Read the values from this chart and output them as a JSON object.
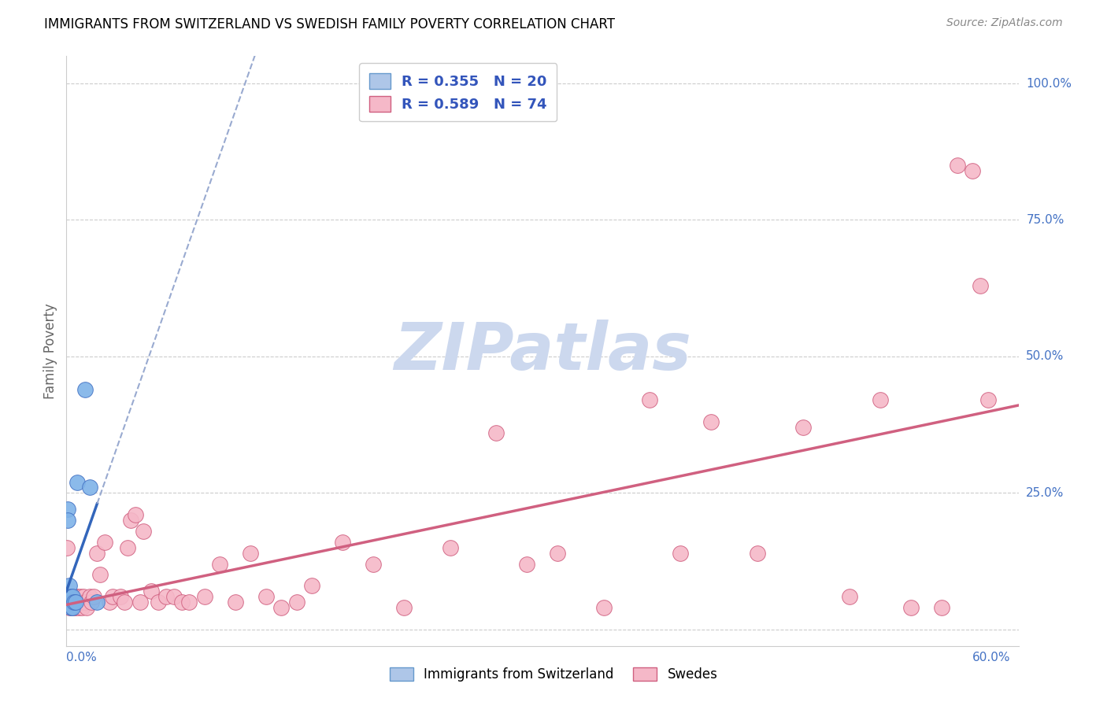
{
  "title": "IMMIGRANTS FROM SWITZERLAND VS SWEDISH FAMILY POVERTY CORRELATION CHART",
  "source": "Source: ZipAtlas.com",
  "ylabel": "Family Poverty",
  "xlim": [
    0.0,
    0.62
  ],
  "ylim": [
    -0.03,
    1.05
  ],
  "watermark": "ZIPatlas",
  "watermark_color": "#ccd8ee",
  "grid_color": "#cccccc",
  "swiss_x": [
    0.0005,
    0.001,
    0.001,
    0.001,
    0.002,
    0.002,
    0.002,
    0.002,
    0.003,
    0.003,
    0.003,
    0.004,
    0.004,
    0.004,
    0.005,
    0.006,
    0.007,
    0.012,
    0.015,
    0.02
  ],
  "swiss_y": [
    0.05,
    0.22,
    0.2,
    0.06,
    0.05,
    0.06,
    0.08,
    0.05,
    0.06,
    0.05,
    0.04,
    0.05,
    0.04,
    0.06,
    0.05,
    0.05,
    0.27,
    0.44,
    0.26,
    0.05
  ],
  "swiss_color": "#7fb3e8",
  "swiss_edge_color": "#4472c4",
  "swiss_trend_color": "#3366bb",
  "swiss_trend_dash_color": "#99aad0",
  "swiss_trend_x_solid_end": 0.02,
  "swede_x": [
    0.0005,
    0.001,
    0.001,
    0.002,
    0.002,
    0.002,
    0.003,
    0.003,
    0.004,
    0.004,
    0.005,
    0.005,
    0.006,
    0.006,
    0.007,
    0.007,
    0.008,
    0.008,
    0.009,
    0.01,
    0.01,
    0.011,
    0.012,
    0.013,
    0.015,
    0.016,
    0.018,
    0.02,
    0.022,
    0.025,
    0.028,
    0.03,
    0.035,
    0.038,
    0.04,
    0.042,
    0.045,
    0.048,
    0.05,
    0.055,
    0.06,
    0.065,
    0.07,
    0.075,
    0.08,
    0.09,
    0.1,
    0.11,
    0.12,
    0.13,
    0.14,
    0.15,
    0.16,
    0.18,
    0.2,
    0.22,
    0.25,
    0.28,
    0.3,
    0.32,
    0.35,
    0.38,
    0.4,
    0.42,
    0.45,
    0.48,
    0.51,
    0.53,
    0.55,
    0.57,
    0.58,
    0.59,
    0.595,
    0.6
  ],
  "swede_y": [
    0.15,
    0.05,
    0.06,
    0.04,
    0.05,
    0.06,
    0.05,
    0.06,
    0.04,
    0.05,
    0.04,
    0.06,
    0.05,
    0.04,
    0.05,
    0.06,
    0.04,
    0.05,
    0.06,
    0.04,
    0.05,
    0.06,
    0.05,
    0.04,
    0.06,
    0.05,
    0.06,
    0.14,
    0.1,
    0.16,
    0.05,
    0.06,
    0.06,
    0.05,
    0.15,
    0.2,
    0.21,
    0.05,
    0.18,
    0.07,
    0.05,
    0.06,
    0.06,
    0.05,
    0.05,
    0.06,
    0.12,
    0.05,
    0.14,
    0.06,
    0.04,
    0.05,
    0.08,
    0.16,
    0.12,
    0.04,
    0.15,
    0.36,
    0.12,
    0.14,
    0.04,
    0.42,
    0.14,
    0.38,
    0.14,
    0.37,
    0.06,
    0.42,
    0.04,
    0.04,
    0.85,
    0.84,
    0.63,
    0.42
  ],
  "swede_color": "#f5b8c8",
  "swede_edge_color": "#d06080",
  "swede_trend_color": "#d06080",
  "legend_blue_label": "R = 0.355   N = 20",
  "legend_pink_label": "R = 0.589   N = 74",
  "legend_text_color": "#3355bb",
  "bottom_legend_label1": "Immigrants from Switzerland",
  "bottom_legend_label2": "Swedes"
}
